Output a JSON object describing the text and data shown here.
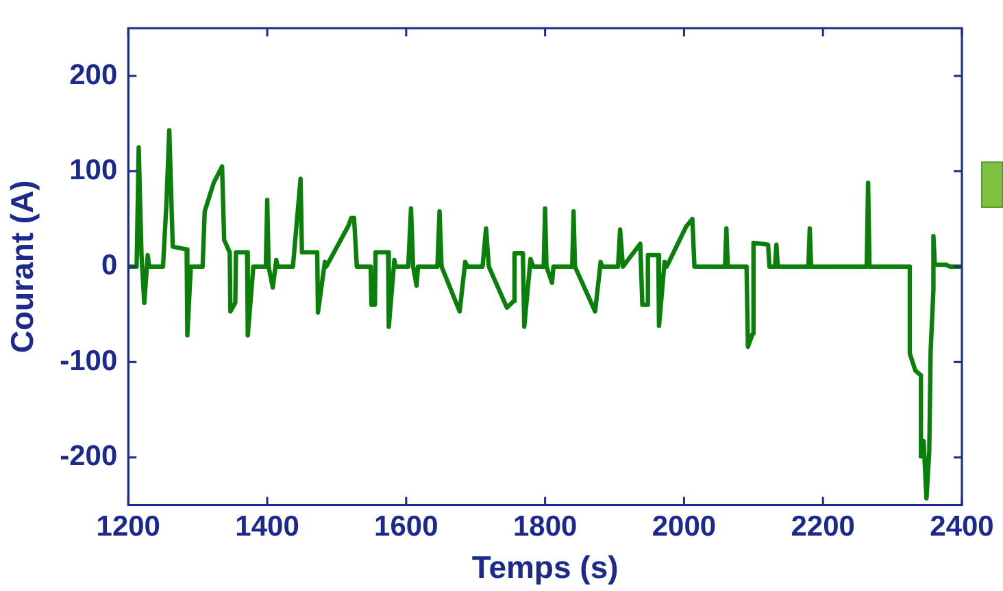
{
  "chart_data": {
    "type": "line",
    "xlabel": "Temps (s)",
    "ylabel": "Courant (A)",
    "xlim": [
      1200,
      2400
    ],
    "xticks": [
      1200,
      1400,
      1600,
      1800,
      2000,
      2200,
      2400
    ],
    "ylim": [
      -250,
      250
    ],
    "yticks": [
      -200,
      -100,
      0,
      100,
      200
    ],
    "grid": false,
    "legend": false,
    "marker": "none",
    "line_style": "solid",
    "series": [
      {
        "color": "#0a800a",
        "x": [
          1200,
          1212,
          1215,
          1219,
          1223,
          1228,
          1230,
          1250,
          1255,
          1259,
          1264,
          1284,
          1285,
          1290,
          1307,
          1310,
          1323,
          1335,
          1338,
          1346,
          1347,
          1354,
          1355,
          1371,
          1372,
          1380,
          1398,
          1400,
          1402,
          1408,
          1413,
          1415,
          1437,
          1448,
          1450,
          1472,
          1473,
          1483,
          1485,
          1517,
          1521,
          1525,
          1529,
          1549,
          1550,
          1555,
          1556,
          1574,
          1575,
          1583,
          1585,
          1603,
          1607,
          1610,
          1615,
          1617,
          1645,
          1648,
          1651,
          1677,
          1685,
          1688,
          1710,
          1715,
          1719,
          1745,
          1755,
          1756,
          1768,
          1770,
          1779,
          1783,
          1798,
          1800,
          1802,
          1810,
          1812,
          1839,
          1841,
          1843,
          1872,
          1880,
          1882,
          1905,
          1908,
          1912,
          1937,
          1940,
          1947,
          1948,
          1963,
          1964,
          1972,
          1975,
          2003,
          2012,
          2015,
          2059,
          2061,
          2063,
          2090,
          2092,
          2099,
          2100,
          2121,
          2123,
          2131,
          2133,
          2135,
          2179,
          2181,
          2183,
          2263,
          2265,
          2267,
          2325,
          2325,
          2333,
          2341,
          2341,
          2345,
          2349,
          2353,
          2355,
          2359,
          2359,
          2361,
          2377,
          2383,
          2400
        ],
        "values": [
          0,
          0,
          125,
          12,
          -38,
          12,
          0,
          0,
          68,
          143,
          21,
          18,
          -72,
          0,
          0,
          58,
          88,
          105,
          28,
          15,
          -47,
          -38,
          15,
          15,
          -72,
          0,
          0,
          70,
          0,
          -22,
          7,
          0,
          0,
          92,
          15,
          15,
          -48,
          5,
          0,
          43,
          51,
          51,
          0,
          0,
          -40,
          -40,
          15,
          15,
          -63,
          7,
          0,
          0,
          61,
          0,
          -20,
          0,
          0,
          58,
          0,
          -47,
          5,
          0,
          0,
          40,
          0,
          -43,
          -36,
          14,
          14,
          -63,
          8,
          0,
          0,
          61,
          0,
          -17,
          0,
          0,
          58,
          0,
          -47,
          5,
          0,
          0,
          39,
          0,
          24,
          -40,
          -40,
          12,
          12,
          -62,
          5,
          0,
          42,
          50,
          0,
          0,
          40,
          0,
          0,
          -84,
          -70,
          25,
          23,
          0,
          0,
          23,
          0,
          0,
          40,
          0,
          0,
          88,
          0,
          0,
          -91,
          -109,
          -114,
          -199,
          -183,
          -243,
          -194,
          -89,
          -24,
          32,
          2,
          2,
          0,
          0
        ]
      }
    ]
  }
}
